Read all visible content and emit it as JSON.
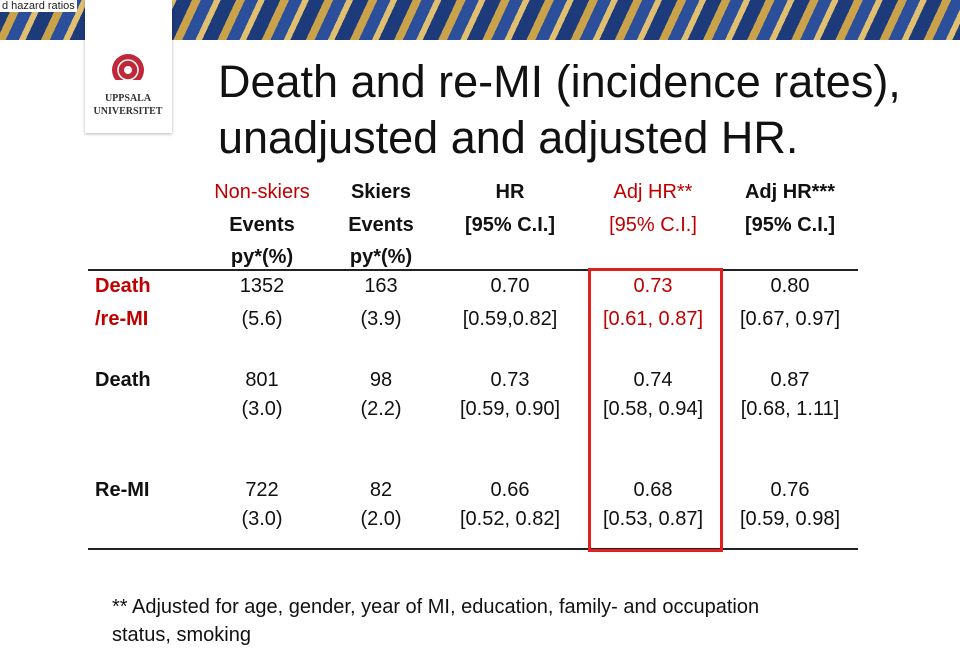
{
  "corner_text": "d hazard ratios",
  "logo": {
    "line1": "UPPSALA",
    "line2": "UNIVERSITET"
  },
  "title": {
    "line1": "Death and re-MI (incidence rates),",
    "line2": "unadjusted and adjusted HR."
  },
  "table": {
    "header": [
      [
        "Non-skiers",
        "Events",
        "py*(%)"
      ],
      [
        "Skiers",
        "Events",
        "py*(%)"
      ],
      [
        "HR",
        "[95% C.I.]"
      ],
      [
        "Adj HR**",
        "[95% C.I.]"
      ],
      [
        "Adj HR***",
        "[95% C.I.]"
      ]
    ],
    "rows": [
      {
        "label": [
          "Death",
          "/re-MI"
        ],
        "cells": [
          [
            "1352",
            "(5.6)"
          ],
          [
            "163",
            "(3.9)"
          ],
          [
            "0.70",
            "[0.59,0.82]"
          ],
          [
            "0.73",
            "[0.61, 0.87]"
          ],
          [
            "0.80",
            "[0.67, 0.97]"
          ]
        ]
      },
      {
        "label": [
          "Death"
        ],
        "cells": [
          [
            "801",
            "(3.0)"
          ],
          [
            "98",
            "(2.2)"
          ],
          [
            "0.73",
            "[0.59, 0.90]"
          ],
          [
            "0.74",
            "[0.58, 0.94]"
          ],
          [
            "0.87",
            "[0.68, 1.11]"
          ]
        ]
      },
      {
        "label": [
          "Re-MI"
        ],
        "cells": [
          [
            "722",
            "(3.0)"
          ],
          [
            "82",
            "(2.0)"
          ],
          [
            "0.66",
            "[0.52, 0.82]"
          ],
          [
            "0.68",
            "[0.53, 0.87]"
          ],
          [
            "0.76",
            "[0.59, 0.98]"
          ]
        ]
      }
    ]
  },
  "footnote": [
    "** Adjusted for age, gender, year of MI, education, family-  and occupation",
    "status, smoking"
  ]
}
